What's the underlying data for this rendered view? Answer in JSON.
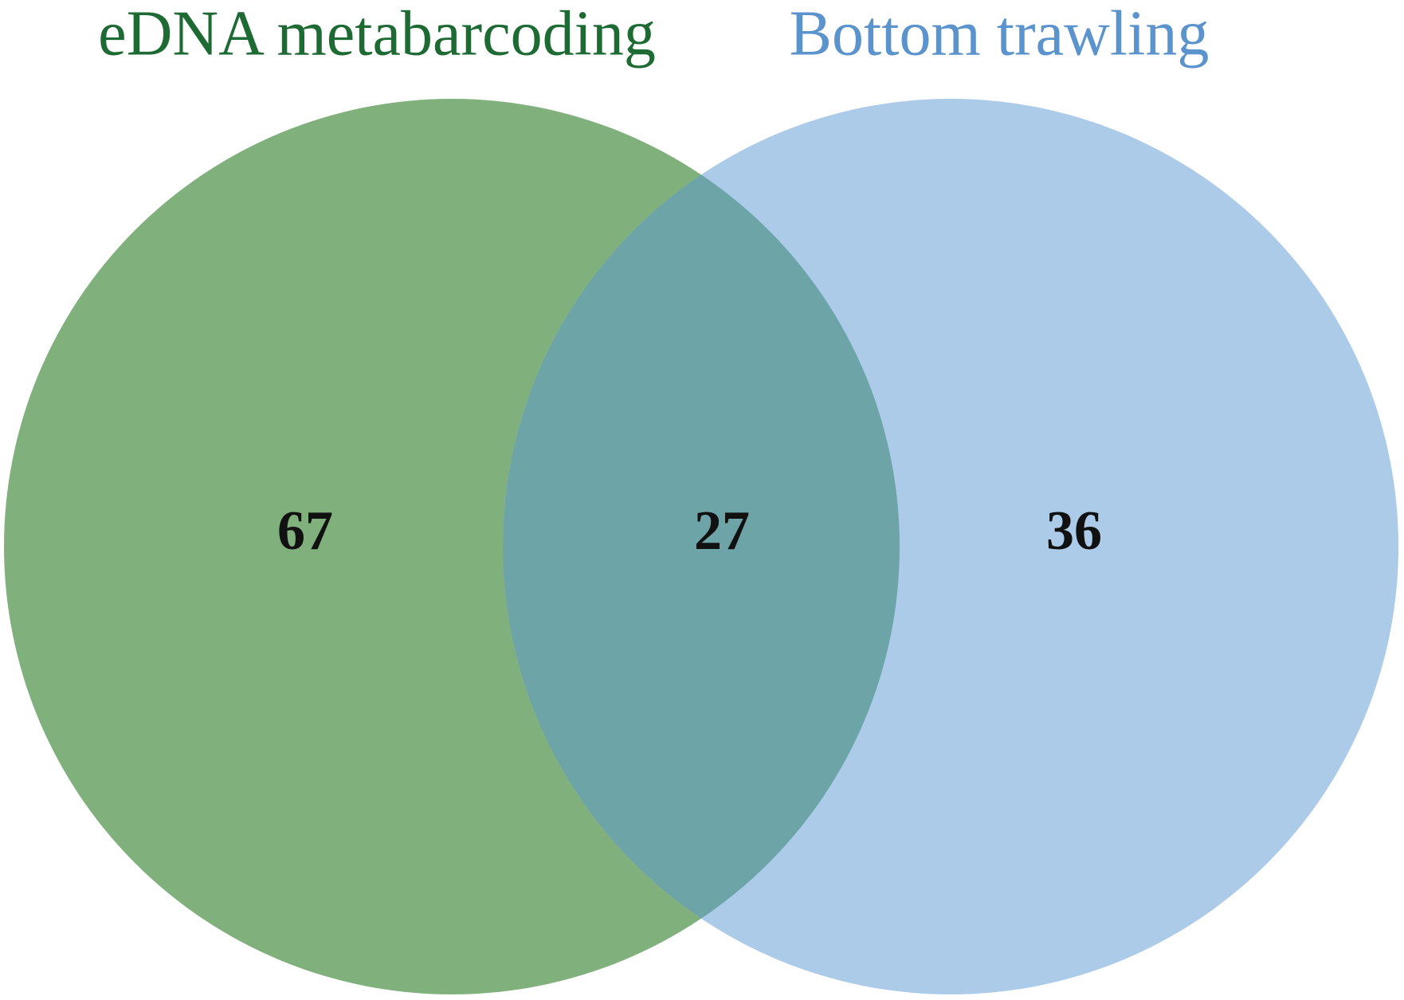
{
  "chart_data": {
    "type": "venn",
    "sets": [
      {
        "name": "eDNA metabarcoding",
        "color": "#80b17c",
        "label_color": "#1d6a33"
      },
      {
        "name": "Bottom trawling",
        "color": "#abcbe9",
        "label_color": "#5b93cc"
      }
    ],
    "overlap_color": "#6ca4a8",
    "values": [
      67,
      27,
      36
    ]
  }
}
